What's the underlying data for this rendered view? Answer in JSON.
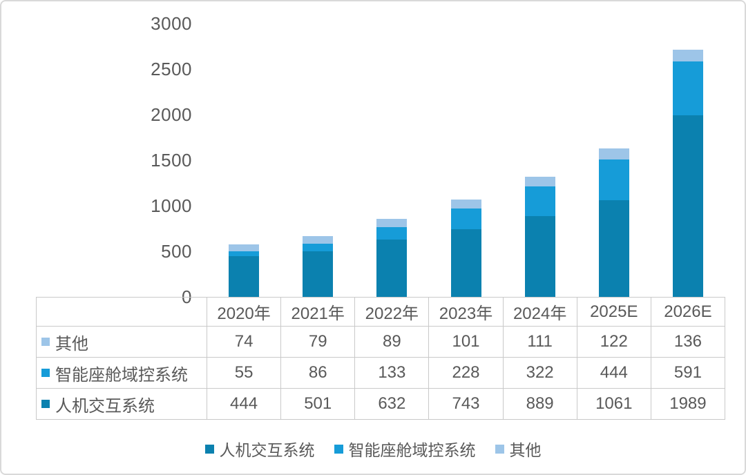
{
  "chart_data": {
    "type": "bar",
    "stacked": true,
    "title": "",
    "categories": [
      "2020年",
      "2021年",
      "2022年",
      "2023年",
      "2024年",
      "2025E",
      "2026E"
    ],
    "series": [
      {
        "name": "人机交互系统",
        "color": "#0b81af",
        "values": [
          444,
          501,
          632,
          743,
          889,
          1061,
          1989
        ]
      },
      {
        "name": "智能座舱域控系统",
        "color": "#169cd8",
        "values": [
          55,
          86,
          133,
          228,
          322,
          444,
          591
        ]
      },
      {
        "name": "其他",
        "color": "#9dc5e8",
        "values": [
          74,
          79,
          89,
          101,
          111,
          122,
          136
        ]
      }
    ],
    "y_axis": {
      "min": 0,
      "max": 3000,
      "tick_interval": 500,
      "ticks": [
        0,
        500,
        1000,
        1500,
        2000,
        2500,
        3000
      ]
    },
    "legend": {
      "position": "bottom",
      "items": [
        "人机交互系统",
        "智能座舱域控系统",
        "其他"
      ]
    },
    "data_table": {
      "shown": true,
      "row_order_top_to_bottom": [
        "其他",
        "智能座舱域控系统",
        "人机交互系统"
      ]
    },
    "grid": false
  },
  "colors": {
    "text": "#595959",
    "table_border": "#c9c9c9",
    "frame_border": "#d9d9d9",
    "background": "#ffffff"
  }
}
